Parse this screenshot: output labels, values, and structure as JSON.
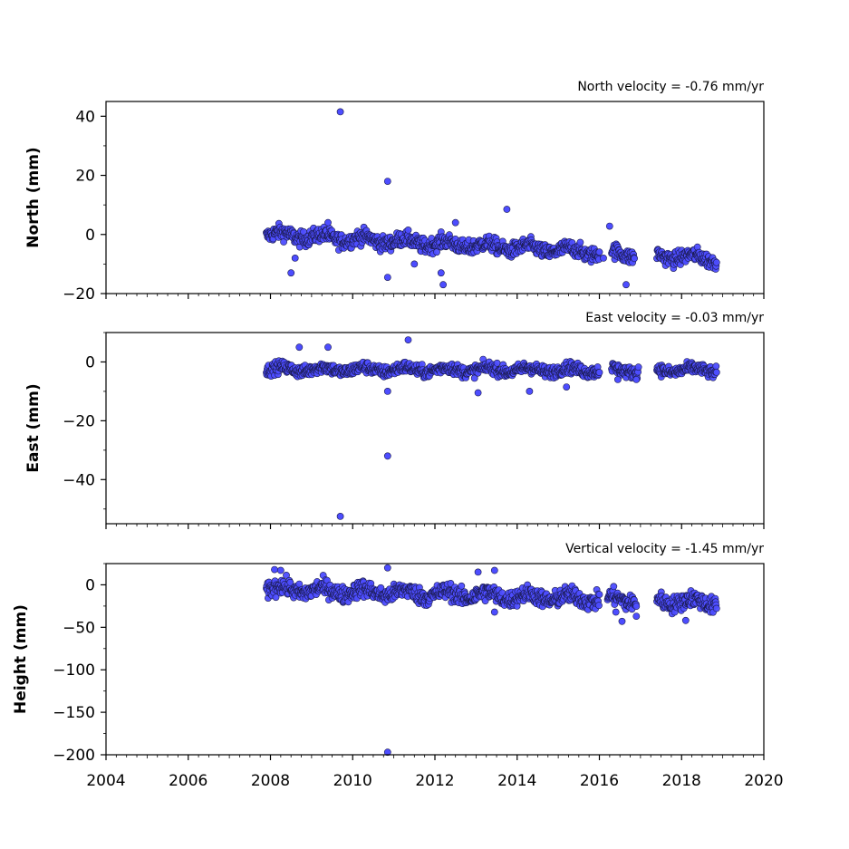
{
  "chart_data": [
    {
      "type": "scatter",
      "title": "North velocity = -0.76 mm/yr",
      "ylabel": "North (mm)",
      "xlim": [
        2004,
        2020
      ],
      "ylim": [
        -20,
        45
      ],
      "yticks": [
        -20,
        0,
        20,
        40
      ],
      "xticks": [
        2004,
        2006,
        2008,
        2010,
        2012,
        2014,
        2016,
        2018,
        2020
      ],
      "show_xtick_labels": false,
      "marker_color": "#4d4dff",
      "trend": {
        "base": 0,
        "slope": -0.76,
        "noise": 1.8
      },
      "segments": [
        [
          2007.9,
          2016.0
        ],
        [
          2016.3,
          2016.85
        ],
        [
          2017.4,
          2018.85
        ]
      ],
      "outliers": [
        [
          2009.7,
          41.5
        ],
        [
          2010.85,
          18
        ],
        [
          2013.75,
          8.5
        ],
        [
          2016.25,
          2.8
        ],
        [
          2012.5,
          4
        ],
        [
          2009.4,
          4
        ],
        [
          2008.5,
          -13
        ],
        [
          2008.6,
          -8
        ],
        [
          2010.85,
          -14.5
        ],
        [
          2012.15,
          -13
        ],
        [
          2012.2,
          -17
        ],
        [
          2011.5,
          -10
        ],
        [
          2016.65,
          -17
        ],
        [
          2016.1,
          -8
        ]
      ]
    },
    {
      "type": "scatter",
      "title": "East velocity = -0.03 mm/yr",
      "ylabel": "East (mm)",
      "xlim": [
        2004,
        2020
      ],
      "ylim": [
        -55,
        10
      ],
      "yticks": [
        -40,
        -20,
        0
      ],
      "xticks": [
        2004,
        2006,
        2008,
        2010,
        2012,
        2014,
        2016,
        2018,
        2020
      ],
      "show_xtick_labels": false,
      "marker_color": "#4d4dff",
      "trend": {
        "base": -2.5,
        "slope": -0.03,
        "noise": 1.4
      },
      "segments": [
        [
          2007.9,
          2016.0
        ],
        [
          2016.3,
          2016.95
        ],
        [
          2017.4,
          2018.85
        ]
      ],
      "outliers": [
        [
          2011.35,
          7.5
        ],
        [
          2009.4,
          5
        ],
        [
          2008.7,
          5
        ],
        [
          2010.85,
          -10
        ],
        [
          2013.05,
          -10.5
        ],
        [
          2014.3,
          -10
        ],
        [
          2015.2,
          -8.5
        ],
        [
          2010.85,
          -32
        ],
        [
          2009.7,
          -52.5
        ],
        [
          2016.45,
          -6
        ],
        [
          2016.9,
          -6
        ]
      ]
    },
    {
      "type": "scatter",
      "title": "Vertical velocity = -1.45 mm/yr",
      "ylabel": "Height (mm)",
      "xlim": [
        2004,
        2020
      ],
      "ylim": [
        -200,
        25
      ],
      "yticks": [
        -200,
        -150,
        -100,
        -50,
        0
      ],
      "xticks": [
        2004,
        2006,
        2008,
        2010,
        2012,
        2014,
        2016,
        2018,
        2020
      ],
      "xtick_labels": [
        "2004",
        "2006",
        "2008",
        "2010",
        "2012",
        "2014",
        "2016",
        "2018",
        "2020"
      ],
      "show_xtick_labels": true,
      "marker_color": "#4d4dff",
      "trend": {
        "base": -5,
        "slope": -1.45,
        "noise": 7
      },
      "segments": [
        [
          2007.9,
          2016.0
        ],
        [
          2016.2,
          2016.9
        ],
        [
          2017.4,
          2018.85
        ]
      ],
      "outliers": [
        [
          2008.1,
          18
        ],
        [
          2008.25,
          17
        ],
        [
          2010.85,
          20
        ],
        [
          2013.45,
          17
        ],
        [
          2013.05,
          15
        ],
        [
          2016.4,
          -32
        ],
        [
          2016.55,
          -43
        ],
        [
          2016.9,
          -37
        ],
        [
          2013.45,
          -32
        ],
        [
          2018.1,
          -42
        ],
        [
          2010.85,
          -197
        ]
      ]
    }
  ]
}
